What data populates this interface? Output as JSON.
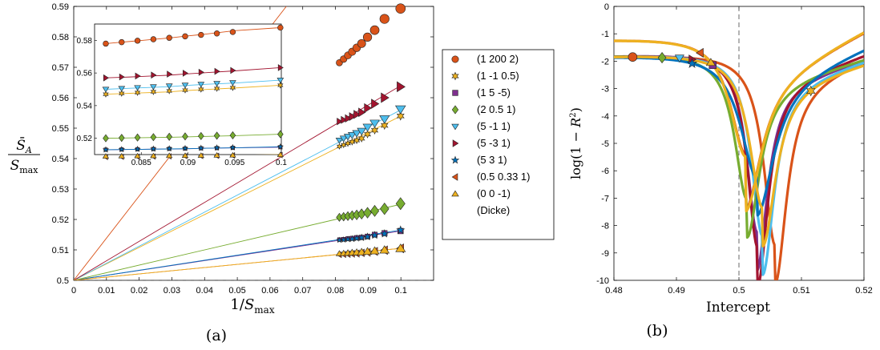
{
  "chart_data": [
    {
      "panel": "a",
      "type": "scatter",
      "caption": "(a)",
      "xlabel": "1/S_max",
      "ylabel": "S̄_A / S_max",
      "xlim": [
        0,
        0.11
      ],
      "ylim": [
        0.5,
        0.59
      ],
      "xticks": [
        "0",
        "0.01",
        "0.02",
        "0.03",
        "0.04",
        "0.05",
        "0.06",
        "0.07",
        "0.08",
        "0.09",
        "0.1"
      ],
      "yticks": [
        "0.5",
        "0.51",
        "0.52",
        "0.53",
        "0.54",
        "0.55",
        "0.56",
        "0.57",
        "0.58",
        "0.59"
      ],
      "dashed_hline": 0.5,
      "fit_lines_from": [
        0,
        0.5
      ],
      "x": [
        0.0812,
        0.0825,
        0.0838,
        0.0851,
        0.0865,
        0.088,
        0.0898,
        0.092,
        0.095,
        0.0999
      ],
      "series": [
        {
          "name": "(1 200 2)",
          "color": "#d95319",
          "marker": "circle",
          "slope": 1.385,
          "values": [
            0.5715,
            0.5727,
            0.5739,
            0.5751,
            0.5764,
            0.5778,
            0.5799,
            0.5822,
            0.5859,
            0.5893
          ]
        },
        {
          "name": "(1 -1 0.5)",
          "color": "#edb120",
          "marker": "hexagram",
          "slope": 0.54,
          "values": [
            0.544,
            0.5445,
            0.545,
            0.5455,
            0.546,
            0.5466,
            0.548,
            0.5493,
            0.5509,
            0.554
          ]
        },
        {
          "name": "(1 5 -5)",
          "color": "#7e2f8e",
          "marker": "square",
          "slope": 0.162,
          "values": [
            0.5134,
            0.5135,
            0.5137,
            0.5138,
            0.514,
            0.5141,
            0.5144,
            0.515,
            0.5155,
            0.5162
          ]
        },
        {
          "name": "(2 0.5 1)",
          "color": "#77ac30",
          "marker": "diamond",
          "slope": 0.25,
          "values": [
            0.5207,
            0.5209,
            0.5211,
            0.5213,
            0.5215,
            0.5218,
            0.5222,
            0.5228,
            0.5235,
            0.5252
          ]
        },
        {
          "name": "(5 -1 1)",
          "color": "#4dbeee",
          "marker": "triangle-down",
          "slope": 0.56,
          "values": [
            0.546,
            0.5466,
            0.5472,
            0.5477,
            0.5483,
            0.549,
            0.5503,
            0.5516,
            0.553,
            0.5562
          ]
        },
        {
          "name": "(5 -3 1)",
          "color": "#a2142f",
          "marker": "triangle-right",
          "slope": 0.64,
          "values": [
            0.5522,
            0.5527,
            0.5532,
            0.5538,
            0.5545,
            0.5552,
            0.5566,
            0.558,
            0.56,
            0.5636
          ]
        },
        {
          "name": "(5 3 1)",
          "color": "#0072bd",
          "marker": "pentagram",
          "slope": 0.165,
          "values": [
            0.5132,
            0.5133,
            0.5135,
            0.5136,
            0.5138,
            0.514,
            0.5143,
            0.5148,
            0.5153,
            0.5165
          ]
        },
        {
          "name": "(0.5 0.33 1)",
          "color": "#d95319",
          "marker": "triangle-left",
          "slope": 0.105,
          "values": [
            0.5084,
            0.5085,
            0.5086,
            0.5087,
            0.5088,
            0.509,
            0.5092,
            0.5095,
            0.5099,
            0.5105
          ]
        },
        {
          "name": "(0 0 -1)\n(Dicke)",
          "color": "#edb120",
          "marker": "triangle-up",
          "slope": 0.105,
          "values": [
            0.5088,
            0.5089,
            0.509,
            0.5091,
            0.5092,
            0.5093,
            0.5095,
            0.5097,
            0.51,
            0.5105
          ]
        }
      ],
      "inset": {
        "xlim": [
          0.08,
          0.1
        ],
        "ylim": [
          0.51,
          0.59
        ],
        "xticks": [
          "0.085",
          "0.09",
          "0.095",
          "0.1"
        ],
        "yticks": [
          "0.52",
          "0.54",
          "0.56",
          "0.58"
        ]
      },
      "legend_location": "outside-right"
    },
    {
      "panel": "b",
      "type": "line",
      "caption": "(b)",
      "xlabel": "Intercept",
      "ylabel": "log(1 − R²)",
      "xlim": [
        0.48,
        0.52
      ],
      "ylim": [
        -10,
        0
      ],
      "xticks": [
        "0.48",
        "0.49",
        "0.5",
        "0.51",
        "0.52"
      ],
      "yticks": [
        "0",
        "-1",
        "-2",
        "-3",
        "-4",
        "-5",
        "-6",
        "-7",
        "-8",
        "-9",
        "-10"
      ],
      "dashed_vline": 0.5,
      "series": [
        {
          "name": "(1 200 2)",
          "color": "#d95319",
          "marker": "circle",
          "x0": 0.5058,
          "depth": -8.9,
          "width": 0.0022,
          "rise": 5.2,
          "marker_x": 0.483
        },
        {
          "name": "(1 -1 0.5)",
          "color": "#edb120",
          "marker": "hexagram",
          "x0": 0.5038,
          "depth": -7.2,
          "width": 0.0025,
          "rise": 4.0,
          "marker_x": 0.5115
        },
        {
          "name": "(1 5 -5)",
          "color": "#7e2f8e",
          "marker": "square",
          "x0": 0.5029,
          "depth": -8.3,
          "width": 0.002,
          "rise": 4.3,
          "marker_x": 0.4958
        },
        {
          "name": "(2 0.5 1)",
          "color": "#77ac30",
          "marker": "diamond",
          "x0": 0.5013,
          "depth": -6.8,
          "width": 0.0024,
          "rise": 4.0,
          "marker_x": 0.4877
        },
        {
          "name": "(5 -1 1)",
          "color": "#4dbeee",
          "marker": "triangle-down",
          "x0": 0.5038,
          "depth": -8.5,
          "width": 0.0022,
          "rise": 4.4,
          "marker_x": 0.4905
        },
        {
          "name": "(5 -3 1)",
          "color": "#a2142f",
          "marker": "triangle-right",
          "x0": 0.503,
          "depth": -9.0,
          "width": 0.002,
          "rise": 5.0,
          "marker_x": 0.4925
        },
        {
          "name": "(5 3 1)",
          "color": "#0072bd",
          "marker": "pentagram",
          "x0": 0.5029,
          "depth": -5.8,
          "width": 0.0032,
          "rise": 6.0,
          "marker_x": 0.4925
        },
        {
          "name": "(0.5 0.33 1)",
          "color": "#d95319",
          "marker": "triangle-left",
          "x0": 0.5011,
          "depth": -5.5,
          "width": 0.003,
          "rise": 7.5,
          "marker_x": 0.4938
        },
        {
          "name": "(0 0 -1)\n(Dicke)",
          "color": "#edb120",
          "marker": "triangle-up",
          "x0": 0.5011,
          "depth": -5.6,
          "width": 0.003,
          "rise": 7.6,
          "marker_x": 0.4955
        }
      ]
    }
  ]
}
